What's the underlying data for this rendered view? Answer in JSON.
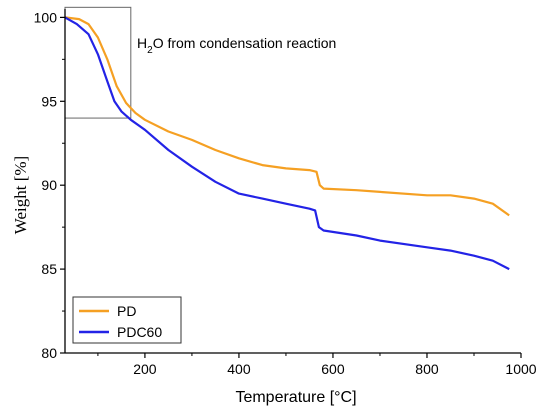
{
  "chart_data": {
    "type": "line",
    "title": "",
    "xlabel": "Temperature [°C]",
    "ylabel": "Weight [%]",
    "xlim": [
      30,
      1000
    ],
    "ylim": [
      80,
      100.5
    ],
    "xticks": [
      200,
      400,
      600,
      800,
      1000
    ],
    "yticks": [
      80,
      85,
      90,
      95,
      100
    ],
    "grid": false,
    "legend_position": "bottom-left",
    "annotation": {
      "text_main": "H",
      "text_sub": "2",
      "text_rest": "O from condensation reaction",
      "box_x": [
        30,
        170
      ],
      "box_y": [
        94.0,
        100.6
      ]
    },
    "series": [
      {
        "name": "PD",
        "color": "#f5a023",
        "points": [
          [
            30,
            100.0
          ],
          [
            60,
            99.9
          ],
          [
            80,
            99.6
          ],
          [
            100,
            98.8
          ],
          [
            120,
            97.5
          ],
          [
            140,
            95.9
          ],
          [
            160,
            94.9
          ],
          [
            180,
            94.3
          ],
          [
            200,
            93.9
          ],
          [
            250,
            93.2
          ],
          [
            300,
            92.7
          ],
          [
            350,
            92.1
          ],
          [
            400,
            91.6
          ],
          [
            450,
            91.2
          ],
          [
            500,
            91.0
          ],
          [
            550,
            90.9
          ],
          [
            565,
            90.8
          ],
          [
            572,
            90.0
          ],
          [
            580,
            89.8
          ],
          [
            650,
            89.7
          ],
          [
            700,
            89.6
          ],
          [
            800,
            89.4
          ],
          [
            850,
            89.4
          ],
          [
            900,
            89.2
          ],
          [
            940,
            88.9
          ],
          [
            975,
            88.2
          ]
        ]
      },
      {
        "name": "PDC60",
        "color": "#2323e6",
        "points": [
          [
            30,
            100.0
          ],
          [
            55,
            99.6
          ],
          [
            80,
            99.0
          ],
          [
            100,
            97.8
          ],
          [
            120,
            96.2
          ],
          [
            135,
            95.0
          ],
          [
            150,
            94.4
          ],
          [
            170,
            93.9
          ],
          [
            200,
            93.3
          ],
          [
            250,
            92.1
          ],
          [
            300,
            91.1
          ],
          [
            350,
            90.2
          ],
          [
            400,
            89.5
          ],
          [
            450,
            89.2
          ],
          [
            500,
            88.9
          ],
          [
            550,
            88.6
          ],
          [
            562,
            88.5
          ],
          [
            570,
            87.5
          ],
          [
            580,
            87.3
          ],
          [
            650,
            87.0
          ],
          [
            700,
            86.7
          ],
          [
            800,
            86.3
          ],
          [
            850,
            86.1
          ],
          [
            900,
            85.8
          ],
          [
            940,
            85.5
          ],
          [
            975,
            85.0
          ]
        ]
      }
    ]
  }
}
